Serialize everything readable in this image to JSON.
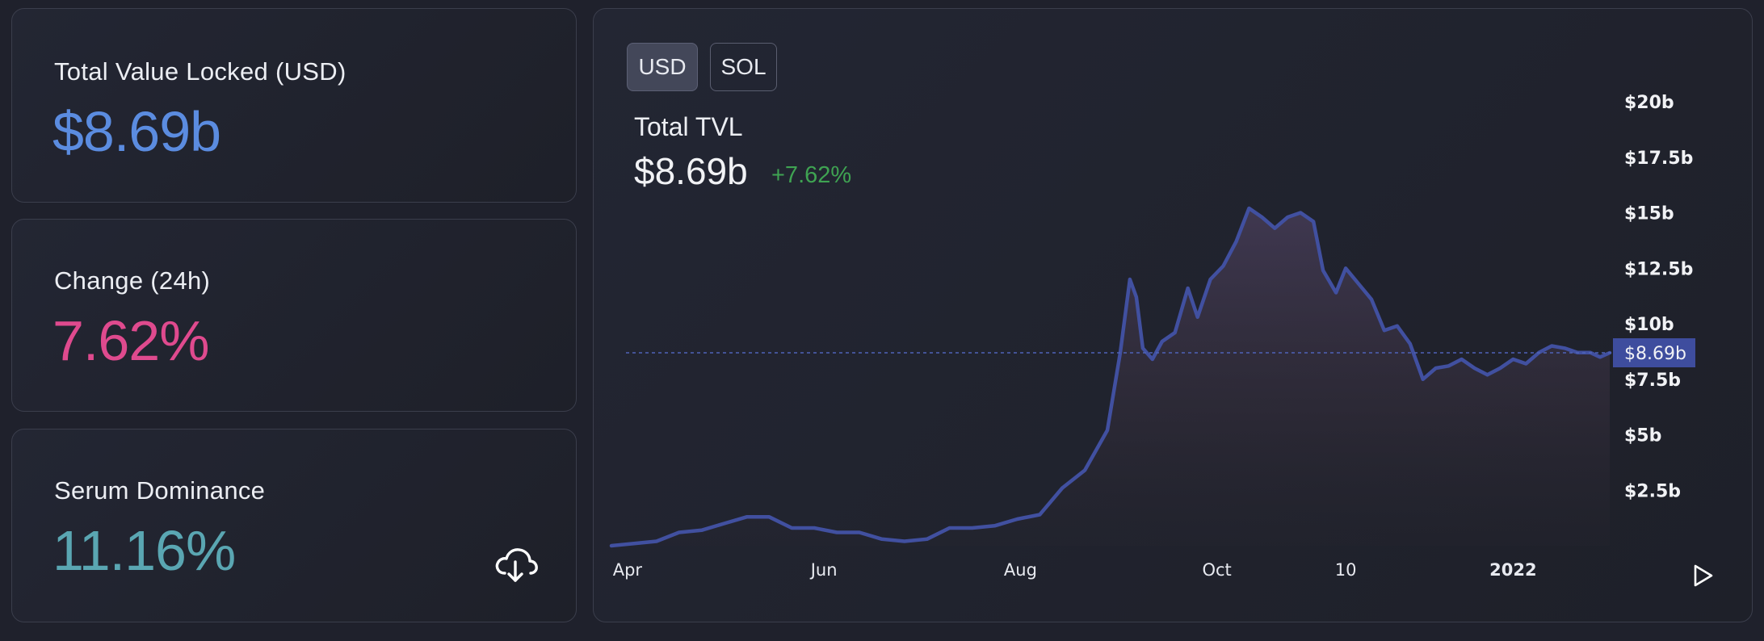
{
  "stats": {
    "tvl": {
      "label": "Total Value Locked (USD)",
      "value": "$8.69b",
      "color": "#5b8ce0"
    },
    "change": {
      "label": "Change (24h)",
      "value": "7.62%",
      "color": "#df4a8e"
    },
    "dominance": {
      "label": "Serum Dominance",
      "value": "11.16%",
      "color": "#5aa6b2",
      "download_icon": "cloud-download-icon"
    }
  },
  "chart_panel": {
    "currency_buttons": [
      {
        "label": "USD",
        "active": true
      },
      {
        "label": "SOL",
        "active": false
      }
    ],
    "title": "Total TVL",
    "value": "$8.69b",
    "change": "+7.62%",
    "current_price_label": "$8.69b",
    "play_icon": "play-icon"
  },
  "chart_data": {
    "type": "area",
    "title": "Total TVL",
    "xlabel": "",
    "ylabel": "",
    "x_tick_labels": [
      "Apr",
      "Jun",
      "Aug",
      "Oct",
      "10",
      "2022"
    ],
    "x_tick_dates": [
      "2021-04-01",
      "2021-06-01",
      "2021-08-01",
      "2021-10-01",
      "2021-11-10",
      "2022-01-01"
    ],
    "xlim": [
      "2021-03-27",
      "2022-01-31"
    ],
    "y_tick_labels": [
      "$2.5b",
      "$5b",
      "$7.5b",
      "$10b",
      "$12.5b",
      "$15b",
      "$17.5b",
      "$20b"
    ],
    "y_tick_values": [
      2.5,
      5,
      7.5,
      10,
      12.5,
      15,
      17.5,
      20
    ],
    "ylim": [
      0,
      20
    ],
    "y_unit": "USD billions",
    "current_value": 8.69,
    "series": [
      {
        "line_color": "#4150a0",
        "x": [
          "2021-03-27",
          "2021-04-03",
          "2021-04-10",
          "2021-04-17",
          "2021-04-24",
          "2021-05-01",
          "2021-05-08",
          "2021-05-15",
          "2021-05-22",
          "2021-05-29",
          "2021-06-05",
          "2021-06-12",
          "2021-06-19",
          "2021-06-26",
          "2021-07-03",
          "2021-07-10",
          "2021-07-17",
          "2021-07-24",
          "2021-07-31",
          "2021-08-07",
          "2021-08-14",
          "2021-08-21",
          "2021-08-28",
          "2021-09-01",
          "2021-09-04",
          "2021-09-06",
          "2021-09-08",
          "2021-09-11",
          "2021-09-14",
          "2021-09-18",
          "2021-09-22",
          "2021-09-25",
          "2021-09-29",
          "2021-10-03",
          "2021-10-07",
          "2021-10-11",
          "2021-10-15",
          "2021-10-19",
          "2021-10-23",
          "2021-10-27",
          "2021-10-31",
          "2021-11-03",
          "2021-11-07",
          "2021-11-10",
          "2021-11-14",
          "2021-11-18",
          "2021-11-22",
          "2021-11-26",
          "2021-11-30",
          "2021-12-04",
          "2021-12-08",
          "2021-12-12",
          "2021-12-16",
          "2021-12-20",
          "2021-12-24",
          "2021-12-28",
          "2022-01-01",
          "2022-01-05",
          "2022-01-09",
          "2022-01-13",
          "2022-01-17",
          "2022-01-21",
          "2022-01-25",
          "2022-01-28",
          "2022-01-31"
        ],
        "y": [
          0.0,
          0.1,
          0.2,
          0.6,
          0.7,
          1.0,
          1.3,
          1.3,
          0.8,
          0.8,
          0.6,
          0.6,
          0.3,
          0.2,
          0.3,
          0.8,
          0.8,
          0.9,
          1.2,
          1.4,
          2.6,
          3.4,
          5.2,
          8.7,
          12.0,
          11.2,
          8.9,
          8.4,
          9.2,
          9.6,
          11.6,
          10.3,
          12.0,
          12.6,
          13.7,
          15.2,
          14.8,
          14.3,
          14.8,
          15.0,
          14.6,
          12.4,
          11.4,
          12.5,
          11.8,
          11.1,
          9.7,
          9.9,
          9.1,
          7.5,
          8.0,
          8.1,
          8.4,
          8.0,
          7.7,
          8.0,
          8.4,
          8.2,
          8.7,
          9.0,
          8.9,
          8.7,
          8.7,
          8.5,
          8.69
        ]
      }
    ]
  }
}
